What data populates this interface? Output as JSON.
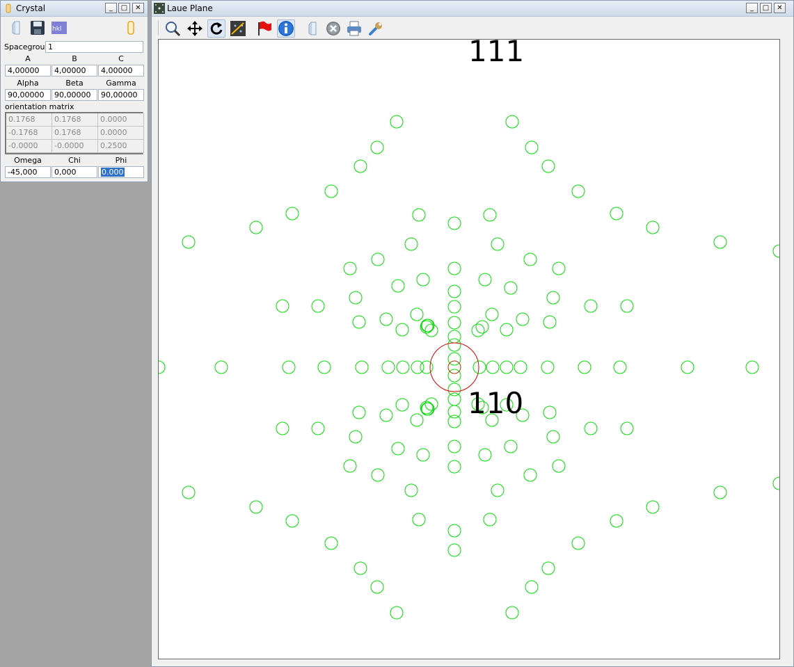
{
  "crystal_window": {
    "title": "Crystal",
    "spacegroup_label": "Spacegroup",
    "spacegroup_value": "1",
    "lattice": {
      "a_label": "A",
      "b_label": "B",
      "c_label": "C",
      "a": "4,00000",
      "b": "4,00000",
      "c": "4,00000",
      "alpha_label": "Alpha",
      "beta_label": "Beta",
      "gamma_label": "Gamma",
      "alpha": "90,00000",
      "beta": "90,00000",
      "gamma": "90,00000"
    },
    "matrix_label": "orientation matrix",
    "matrix": [
      [
        "0.1768",
        "0.1768",
        "0.0000"
      ],
      [
        "-0.1768",
        "0.1768",
        "0.0000"
      ],
      [
        "-0.0000",
        "-0.0000",
        "0.2500"
      ]
    ],
    "angles": {
      "omega_label": "Omega",
      "chi_label": "Chi",
      "phi_label": "Phi",
      "omega": "-45,000",
      "chi": "0,000",
      "phi": "0.000"
    },
    "toolbar_icons": [
      "crystal-icon",
      "save-icon",
      "hkl-icon",
      "gold-crystal-icon"
    ],
    "hkl_icon_text": "hkl"
  },
  "laue_window": {
    "title": "Laue Plane",
    "toolbar_icons": [
      "zoom-icon",
      "pan-icon",
      "rotate-icon",
      "image-icon",
      "flag-icon",
      "info-icon",
      "crystal-icon",
      "close-circle-icon",
      "print-icon",
      "wrench-icon"
    ],
    "labels": {
      "top": "111",
      "center": "110"
    },
    "spot_color": "#00dd00",
    "highlight_color": "#dd0000",
    "center_spot_color": "#aa3300"
  }
}
